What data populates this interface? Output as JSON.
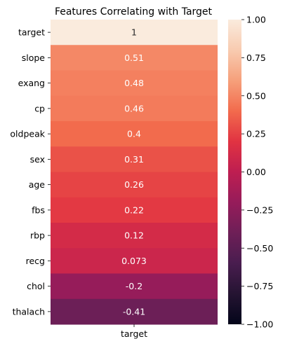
{
  "chart_data": {
    "type": "heatmap",
    "title": "Features Correlating with Target",
    "xlabel": "",
    "ylabel": "",
    "columns": [
      "target"
    ],
    "rows": [
      "target",
      "slope",
      "exang",
      "cp",
      "oldpeak",
      "sex",
      "age",
      "fbs",
      "rbp",
      "recg",
      "chol",
      "thalach"
    ],
    "values": [
      1,
      0.51,
      0.48,
      0.46,
      0.4,
      0.31,
      0.26,
      0.22,
      0.12,
      0.073,
      -0.2,
      -0.41
    ],
    "annotations": [
      "1",
      "0.51",
      "0.48",
      "0.46",
      "0.4",
      "0.31",
      "0.26",
      "0.22",
      "0.12",
      "0.073",
      "-0.2",
      "-0.41"
    ],
    "vmin": -1.0,
    "vmax": 1.0,
    "colormap": "rocket",
    "colorbar_ticks": [
      "1.00",
      "0.75",
      "0.50",
      "0.25",
      "0.00",
      "−0.25",
      "−0.50",
      "−0.75",
      "−1.00"
    ],
    "colorbar_tick_values": [
      1.0,
      0.75,
      0.5,
      0.25,
      0.0,
      -0.25,
      -0.5,
      -0.75,
      -1.0
    ]
  }
}
